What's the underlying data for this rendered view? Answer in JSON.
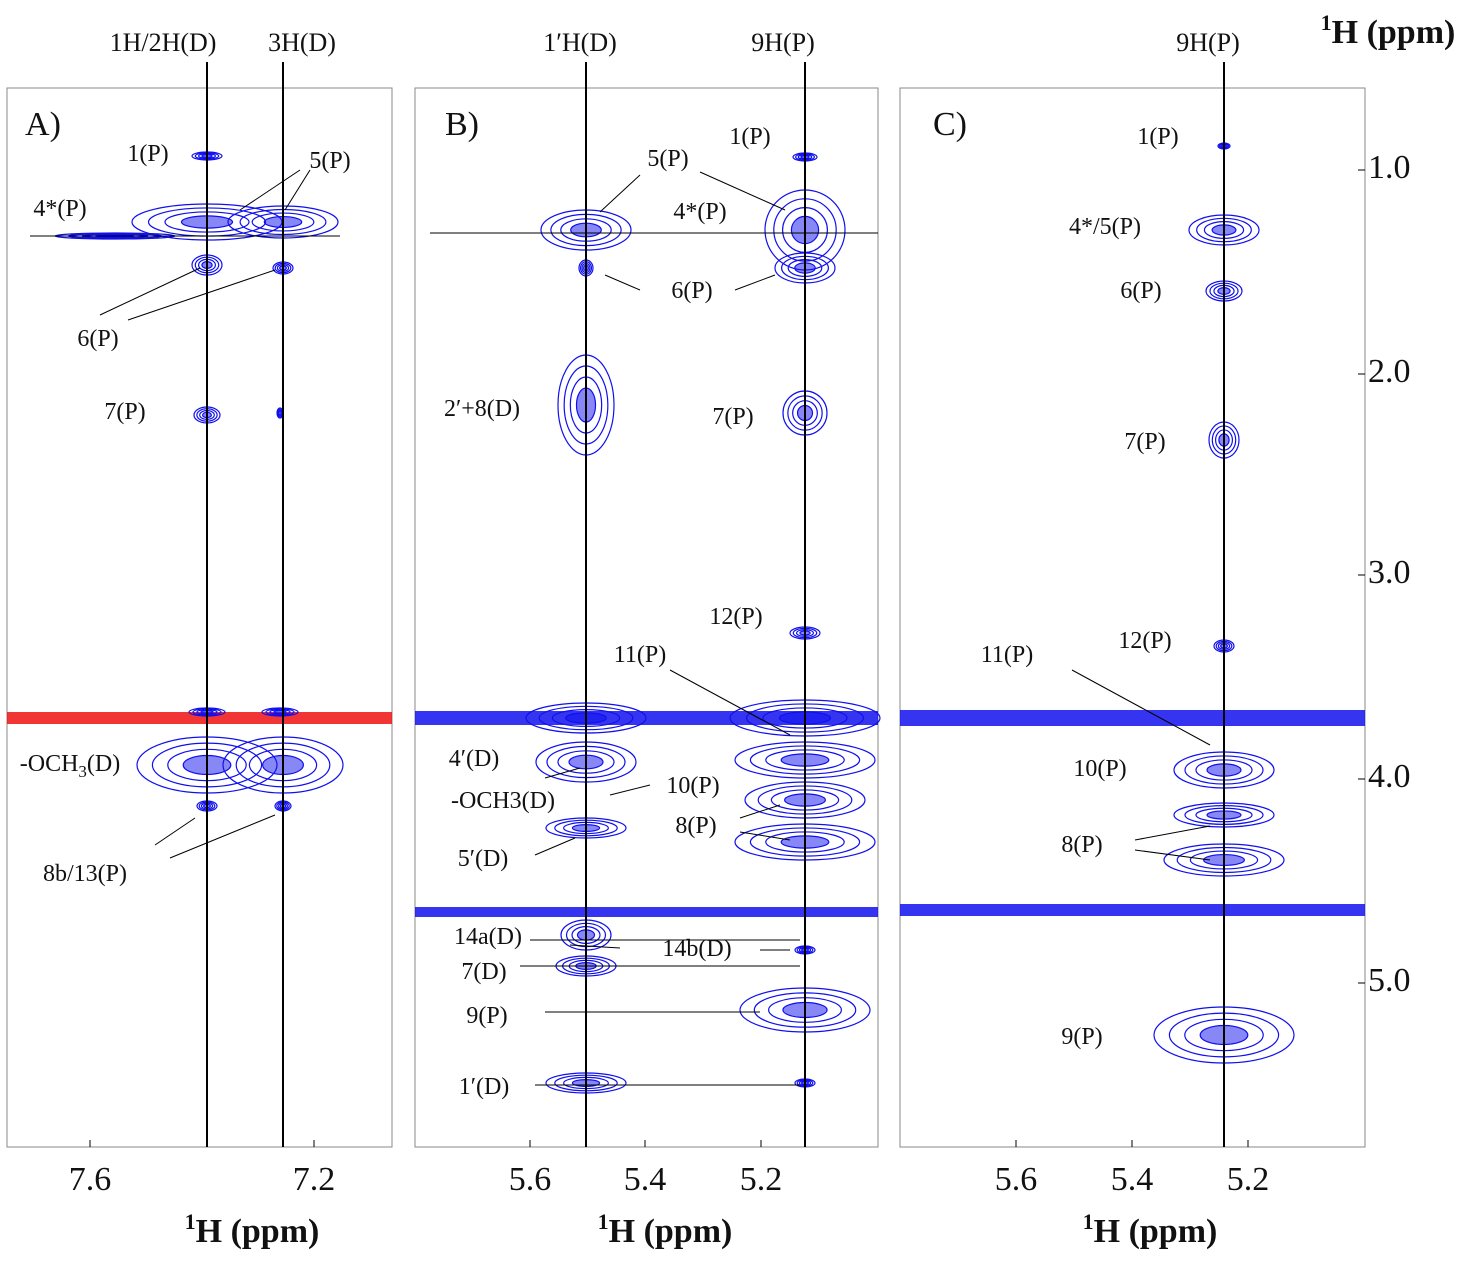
{
  "axis": {
    "title_sup": "1",
    "title": "H (ppm)",
    "ticks": [
      "1.0",
      "2.0",
      "3.0",
      "4.0",
      "5.0"
    ]
  },
  "panels": [
    {
      "label": "A)",
      "top_labels": [
        "1H/2H(D)",
        "3H(D)"
      ],
      "x_ticks": [
        "7.6",
        "7.2"
      ],
      "x_title_sup": "1",
      "x_title": "H (ppm)",
      "peaks": [
        {
          "text": "1(P)"
        },
        {
          "text": "5(P)"
        },
        {
          "text": "4*(P)"
        },
        {
          "text": "6(P)"
        },
        {
          "text": "7(P)"
        },
        {
          "text": "-OCH",
          "sub": "3",
          "after": "(D)"
        },
        {
          "text": "8b/13(P)"
        }
      ]
    },
    {
      "label": "B)",
      "top_labels": [
        "1′H(D)",
        "9H(P)"
      ],
      "x_ticks": [
        "5.6",
        "5.4",
        "5.2"
      ],
      "x_title_sup": "1",
      "x_title": "H (ppm)",
      "peaks": [
        {
          "text": "1(P)"
        },
        {
          "text": "5(P)"
        },
        {
          "text": "4*(P)"
        },
        {
          "text": "6(P)"
        },
        {
          "text": "2′+8(D)"
        },
        {
          "text": "7(P)"
        },
        {
          "text": "12(P)"
        },
        {
          "text": "11(P)"
        },
        {
          "text": "4′(D)"
        },
        {
          "text": "10(P)"
        },
        {
          "text": "-OCH3(D)"
        },
        {
          "text": "8(P)"
        },
        {
          "text": "5′(D)"
        },
        {
          "text": "14a(D)"
        },
        {
          "text": "14b(D)"
        },
        {
          "text": "7(D)"
        },
        {
          "text": "9(P)"
        },
        {
          "text": "1′(D)"
        }
      ]
    },
    {
      "label": "C)",
      "top_labels": [
        "9H(P)"
      ],
      "x_ticks": [
        "5.6",
        "5.4",
        "5.2"
      ],
      "x_title_sup": "1",
      "x_title": "H (ppm)",
      "peaks": [
        {
          "text": "1(P)"
        },
        {
          "text": "4*/5(P)"
        },
        {
          "text": "6(P)"
        },
        {
          "text": "7(P)"
        },
        {
          "text": "12(P)"
        },
        {
          "text": "11(P)"
        },
        {
          "text": "10(P)"
        },
        {
          "text": "8(P)"
        },
        {
          "text": "9(P)"
        }
      ]
    }
  ]
}
